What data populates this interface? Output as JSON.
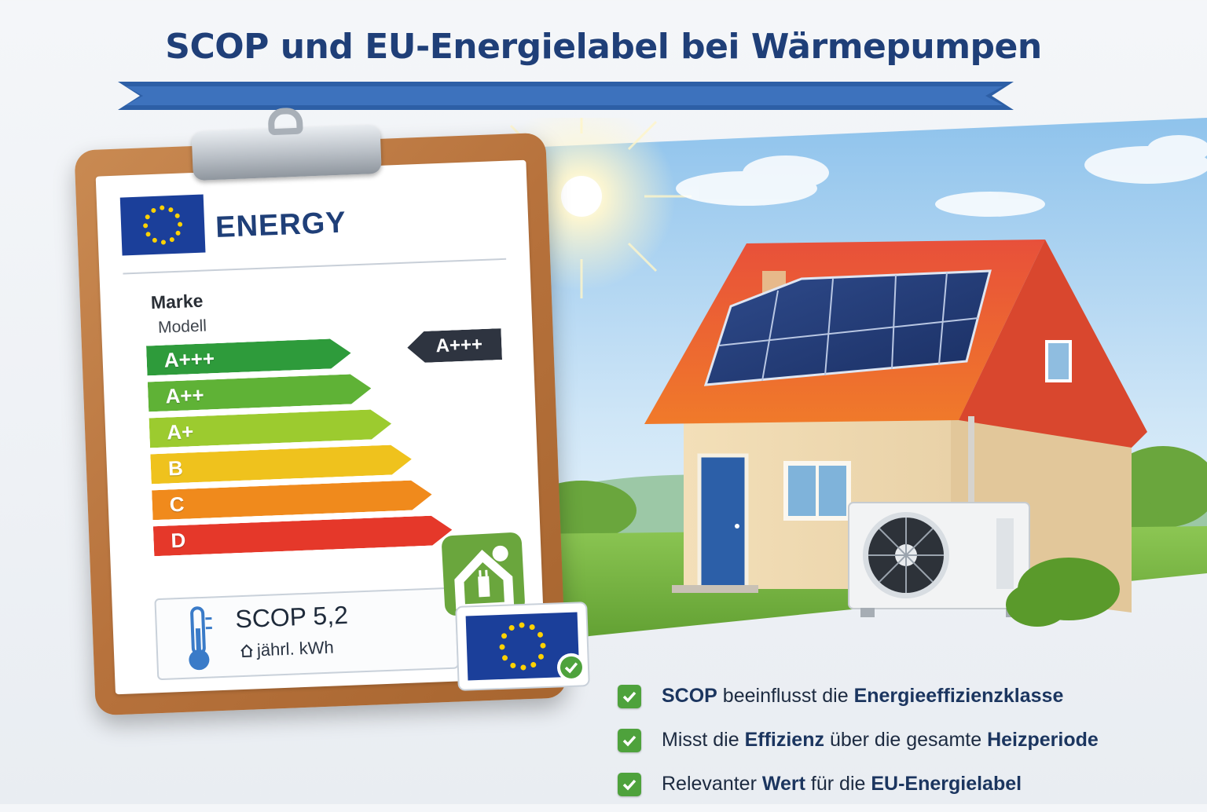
{
  "title": "SCOP und EU-Energielabel bei Wärmepumpen",
  "label": {
    "energy": "ENERGY",
    "brand": "Marke",
    "model": "Modell",
    "classes": [
      {
        "label": "A+++",
        "color": "#2e9b3b"
      },
      {
        "label": "A++",
        "color": "#5fb236"
      },
      {
        "label": "A+",
        "color": "#9ccb2f"
      },
      {
        "label": "B",
        "color": "#efc21d"
      },
      {
        "label": "C",
        "color": "#f08a1c"
      },
      {
        "label": "D",
        "color": "#e5382a"
      }
    ],
    "rating": "A+++",
    "scop": "SCOP 5,2",
    "annual": "jährl. kWh"
  },
  "bullets": [
    {
      "parts": [
        {
          "t": "SCOP",
          "b": true
        },
        {
          "t": " beeinflusst die ",
          "b": false
        },
        {
          "t": "Energieeffizienzklasse",
          "b": true
        }
      ]
    },
    {
      "parts": [
        {
          "t": "Misst die ",
          "b": false
        },
        {
          "t": "Effizienz",
          "b": true
        },
        {
          "t": " über die gesamte ",
          "b": false
        },
        {
          "t": "Heizperiode",
          "b": true
        }
      ]
    },
    {
      "parts": [
        {
          "t": "Relevanter ",
          "b": false
        },
        {
          "t": "Wert",
          "b": true
        },
        {
          "t": " für die ",
          "b": false
        },
        {
          "t": "EU-Energielabel",
          "b": true
        }
      ]
    }
  ],
  "colors": {
    "title": "#1f3f78",
    "banner": "#2d5fa6",
    "check": "#4ea23c",
    "eu_blue": "#1b3f9a",
    "eu_star": "#ffd200"
  },
  "icons": [
    "eu-flag-icon",
    "thermometer-icon",
    "house-icon",
    "eco-house-plug-icon",
    "check-icon",
    "sun-icon",
    "heat-pump-icon",
    "solar-panel-icon"
  ]
}
